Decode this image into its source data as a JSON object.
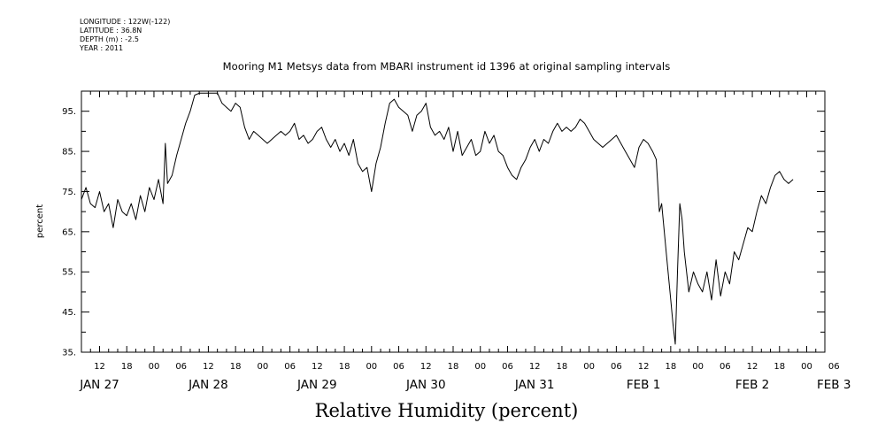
{
  "meta": {
    "longitude": "LONGITUDE : 122W(-122)",
    "latitude": "LATITUDE : 36.8N",
    "depth": "DEPTH (m) : -2.5",
    "year": "YEAR : 2011"
  },
  "chart_data": {
    "type": "line",
    "title": "Mooring M1 Metsys data from MBARI instrument id 1396 at original sampling intervals",
    "xlabel": "Relative Humidity (percent)",
    "ylabel": "percent",
    "ylim": [
      35,
      100
    ],
    "yticks": [
      35,
      45,
      55,
      65,
      75,
      85,
      95
    ],
    "xlim": [
      8,
      172
    ],
    "x_unit": "hours since JAN 27 00:00",
    "hour_ticks": [
      {
        "x": 12,
        "label": "12"
      },
      {
        "x": 18,
        "label": "18"
      },
      {
        "x": 24,
        "label": "00"
      },
      {
        "x": 30,
        "label": "06"
      },
      {
        "x": 36,
        "label": "12"
      },
      {
        "x": 42,
        "label": "18"
      },
      {
        "x": 48,
        "label": "00"
      },
      {
        "x": 54,
        "label": "06"
      },
      {
        "x": 60,
        "label": "12"
      },
      {
        "x": 66,
        "label": "18"
      },
      {
        "x": 72,
        "label": "00"
      },
      {
        "x": 78,
        "label": "06"
      },
      {
        "x": 84,
        "label": "12"
      },
      {
        "x": 90,
        "label": "18"
      },
      {
        "x": 96,
        "label": "00"
      },
      {
        "x": 102,
        "label": "06"
      },
      {
        "x": 108,
        "label": "12"
      },
      {
        "x": 114,
        "label": "18"
      },
      {
        "x": 120,
        "label": "00"
      },
      {
        "x": 126,
        "label": "06"
      },
      {
        "x": 132,
        "label": "12"
      },
      {
        "x": 138,
        "label": "18"
      },
      {
        "x": 144,
        "label": "00"
      },
      {
        "x": 150,
        "label": "06"
      },
      {
        "x": 156,
        "label": "12"
      },
      {
        "x": 162,
        "label": "18"
      },
      {
        "x": 168,
        "label": "00"
      },
      {
        "x": 174,
        "label": "06"
      }
    ],
    "day_labels": [
      {
        "x": 12,
        "label": "JAN 27"
      },
      {
        "x": 36,
        "label": "JAN 28"
      },
      {
        "x": 60,
        "label": "JAN 29"
      },
      {
        "x": 84,
        "label": "JAN 30"
      },
      {
        "x": 108,
        "label": "JAN 31"
      },
      {
        "x": 132,
        "label": "FEB  1"
      },
      {
        "x": 156,
        "label": "FEB  2"
      },
      {
        "x": 174,
        "label": "FEB  3"
      }
    ],
    "series": [
      {
        "color": "#000000",
        "points": [
          [
            8,
            73
          ],
          [
            9,
            76
          ],
          [
            10,
            72
          ],
          [
            11,
            71
          ],
          [
            12,
            75
          ],
          [
            13,
            70
          ],
          [
            14,
            72
          ],
          [
            15,
            66
          ],
          [
            16,
            73
          ],
          [
            17,
            70
          ],
          [
            18,
            69
          ],
          [
            19,
            72
          ],
          [
            20,
            68
          ],
          [
            21,
            74
          ],
          [
            22,
            70
          ],
          [
            23,
            76
          ],
          [
            24,
            73
          ],
          [
            25,
            78
          ],
          [
            26,
            72
          ],
          [
            26.5,
            87
          ],
          [
            27,
            77
          ],
          [
            28,
            79
          ],
          [
            29,
            84
          ],
          [
            30,
            88
          ],
          [
            31,
            92
          ],
          [
            32,
            95
          ],
          [
            33,
            99
          ],
          [
            34,
            99.5
          ],
          [
            35,
            99.5
          ],
          [
            36,
            99.5
          ],
          [
            37,
            99.5
          ],
          [
            38,
            99.5
          ],
          [
            39,
            97
          ],
          [
            40,
            96
          ],
          [
            41,
            95
          ],
          [
            42,
            97
          ],
          [
            43,
            96
          ],
          [
            44,
            91
          ],
          [
            45,
            88
          ],
          [
            46,
            90
          ],
          [
            47,
            89
          ],
          [
            48,
            88
          ],
          [
            49,
            87
          ],
          [
            50,
            88
          ],
          [
            51,
            89
          ],
          [
            52,
            90
          ],
          [
            53,
            89
          ],
          [
            54,
            90
          ],
          [
            55,
            92
          ],
          [
            56,
            88
          ],
          [
            57,
            89
          ],
          [
            58,
            87
          ],
          [
            59,
            88
          ],
          [
            60,
            90
          ],
          [
            61,
            91
          ],
          [
            62,
            88
          ],
          [
            63,
            86
          ],
          [
            64,
            88
          ],
          [
            65,
            85
          ],
          [
            66,
            87
          ],
          [
            67,
            84
          ],
          [
            68,
            88
          ],
          [
            69,
            82
          ],
          [
            70,
            80
          ],
          [
            71,
            81
          ],
          [
            72,
            75
          ],
          [
            73,
            82
          ],
          [
            74,
            86
          ],
          [
            75,
            92
          ],
          [
            76,
            97
          ],
          [
            77,
            98
          ],
          [
            78,
            96
          ],
          [
            79,
            95
          ],
          [
            80,
            94
          ],
          [
            81,
            90
          ],
          [
            82,
            94
          ],
          [
            83,
            95
          ],
          [
            84,
            97
          ],
          [
            85,
            91
          ],
          [
            86,
            89
          ],
          [
            87,
            90
          ],
          [
            88,
            88
          ],
          [
            89,
            91
          ],
          [
            90,
            85
          ],
          [
            91,
            90
          ],
          [
            92,
            84
          ],
          [
            93,
            86
          ],
          [
            94,
            88
          ],
          [
            95,
            84
          ],
          [
            96,
            85
          ],
          [
            97,
            90
          ],
          [
            98,
            87
          ],
          [
            99,
            89
          ],
          [
            100,
            85
          ],
          [
            101,
            84
          ],
          [
            102,
            81
          ],
          [
            103,
            79
          ],
          [
            104,
            78
          ],
          [
            105,
            81
          ],
          [
            106,
            83
          ],
          [
            107,
            86
          ],
          [
            108,
            88
          ],
          [
            109,
            85
          ],
          [
            110,
            88
          ],
          [
            111,
            87
          ],
          [
            112,
            90
          ],
          [
            113,
            92
          ],
          [
            114,
            90
          ],
          [
            115,
            91
          ],
          [
            116,
            90
          ],
          [
            117,
            91
          ],
          [
            118,
            93
          ],
          [
            119,
            92
          ],
          [
            120,
            90
          ],
          [
            121,
            88
          ],
          [
            122,
            87
          ],
          [
            123,
            86
          ],
          [
            124,
            87
          ],
          [
            125,
            88
          ],
          [
            126,
            89
          ],
          [
            127,
            87
          ],
          [
            128,
            85
          ],
          [
            129,
            83
          ],
          [
            130,
            81
          ],
          [
            131,
            86
          ],
          [
            132,
            88
          ],
          [
            133,
            87
          ],
          [
            134,
            85
          ],
          [
            134.8,
            83
          ],
          [
            135.5,
            70
          ],
          [
            136,
            72
          ],
          [
            137,
            60
          ],
          [
            138,
            48
          ],
          [
            138.5,
            42
          ],
          [
            139,
            37
          ],
          [
            139.5,
            55
          ],
          [
            140,
            72
          ],
          [
            140.5,
            68
          ],
          [
            141,
            60
          ],
          [
            142,
            50
          ],
          [
            143,
            55
          ],
          [
            144,
            52
          ],
          [
            145,
            50
          ],
          [
            146,
            55
          ],
          [
            147,
            48
          ],
          [
            148,
            58
          ],
          [
            149,
            49
          ],
          [
            150,
            55
          ],
          [
            151,
            52
          ],
          [
            152,
            60
          ],
          [
            153,
            58
          ],
          [
            154,
            62
          ],
          [
            155,
            66
          ],
          [
            156,
            65
          ],
          [
            157,
            70
          ],
          [
            158,
            74
          ],
          [
            159,
            72
          ],
          [
            160,
            76
          ],
          [
            161,
            79
          ],
          [
            162,
            80
          ],
          [
            163,
            78
          ],
          [
            164,
            77
          ],
          [
            165,
            78
          ]
        ]
      }
    ]
  }
}
